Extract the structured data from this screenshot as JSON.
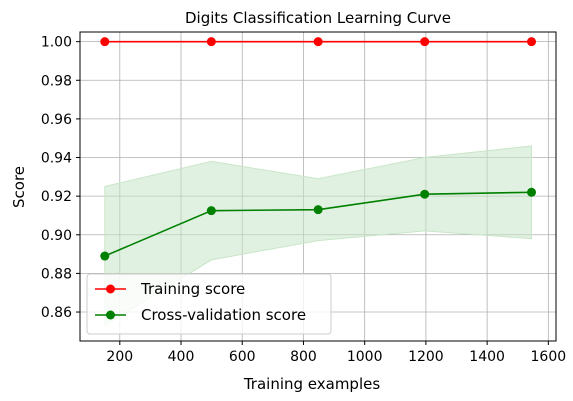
{
  "chart_data": {
    "type": "line",
    "title": "Digits Classification Learning Curve",
    "xlabel": "Training examples",
    "ylabel": "Score",
    "xlim": [
      70,
      1625
    ],
    "ylim": [
      0.845,
      1.005
    ],
    "xticks": [
      200,
      400,
      600,
      800,
      1000,
      1200,
      1400,
      1600
    ],
    "xtick_labels": [
      "200",
      "400",
      "600",
      "800",
      "1000",
      "1200",
      "1400",
      "1600"
    ],
    "yticks": [
      0.86,
      0.88,
      0.9,
      0.92,
      0.94,
      0.96,
      0.98,
      1.0
    ],
    "ytick_labels": [
      "0.86",
      "0.88",
      "0.90",
      "0.92",
      "0.94",
      "0.96",
      "0.98",
      "1.00"
    ],
    "grid": true,
    "legend_position": "bottom-left",
    "x": [
      151,
      499,
      848,
      1196,
      1545
    ],
    "series": [
      {
        "name": "Training score",
        "color": "#ff0000",
        "values": [
          1.0,
          1.0,
          1.0,
          1.0,
          1.0
        ],
        "band_lower": [
          1.0,
          1.0,
          1.0,
          1.0,
          1.0
        ],
        "band_upper": [
          1.0,
          1.0,
          1.0,
          1.0,
          1.0
        ]
      },
      {
        "name": "Cross-validation score",
        "color": "#008000",
        "band_color": "#c8e6c8",
        "values": [
          0.889,
          0.9125,
          0.913,
          0.921,
          0.922
        ],
        "band_lower": [
          0.853,
          0.887,
          0.897,
          0.902,
          0.898
        ],
        "band_upper": [
          0.925,
          0.938,
          0.929,
          0.94,
          0.946
        ]
      }
    ]
  }
}
